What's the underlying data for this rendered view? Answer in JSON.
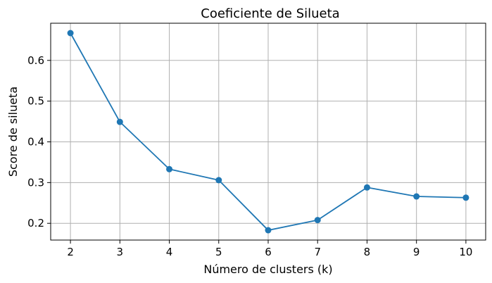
{
  "chart_data": {
    "type": "line",
    "title": "Coeficiente de Silueta",
    "xlabel": "Número de clusters (k)",
    "ylabel": "Score de silueta",
    "x": [
      2,
      3,
      4,
      5,
      6,
      7,
      8,
      9,
      10
    ],
    "series": [
      {
        "values": [
          0.667,
          0.449,
          0.333,
          0.306,
          0.183,
          0.208,
          0.288,
          0.266,
          0.263
        ],
        "color": "#1f77b4",
        "marker": "circle"
      }
    ],
    "xlim": [
      1.6,
      10.4
    ],
    "ylim": [
      0.1589,
      0.6912
    ],
    "xticks": [
      2,
      3,
      4,
      5,
      6,
      7,
      8,
      9,
      10
    ],
    "xtick_labels": [
      "2",
      "3",
      "4",
      "5",
      "6",
      "7",
      "8",
      "9",
      "10"
    ],
    "yticks": [
      0.2,
      0.3,
      0.4,
      0.5,
      0.6
    ],
    "ytick_labels": [
      "0.2",
      "0.3",
      "0.4",
      "0.5",
      "0.6"
    ],
    "grid": true,
    "grid_color": "#b0b0b0",
    "legend": "none"
  }
}
